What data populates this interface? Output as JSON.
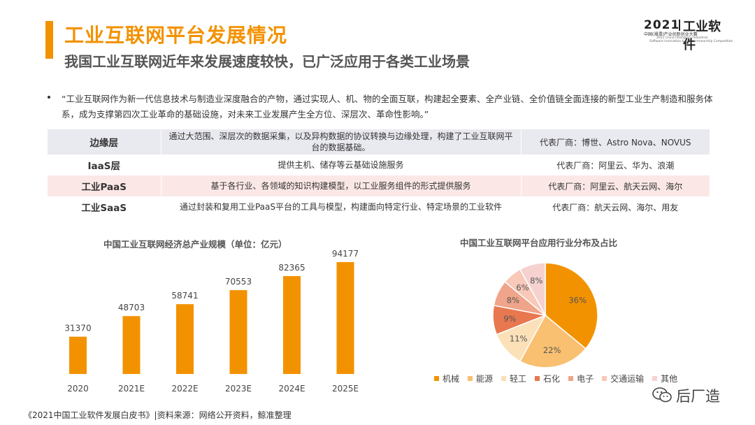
{
  "header": {
    "title": "工业互联网平台发展情况",
    "subtitle": "我国工业互联网近年来发展速度较快，已广泛应用于各类工业场景"
  },
  "logo": {
    "year": "2021",
    "brand": "工业软件",
    "sub": "中国(湘潭)产业创新创业大赛",
    "en_line1": "2021 China (Xiangtan) Industrial",
    "en_line2": "Software Innovation & Entrepreneurship Competition"
  },
  "quote": "“工业互联网作为新一代信息技术与制造业深度融合的产物，通过实现人、机、物的全面互联，构建起全要素、全产业链、全价值链全面连接的新型工业生产制造和服务体系，成为支撑第四次工业革命的基础设施，对未来工业发展产生全方位、深层次、革命性影响。”",
  "layers": [
    {
      "name": "边缘层",
      "desc": "通过大范围、深层次的数据采集，以及异构数据的协议转换与边缘处理，构建了工业互联网平台的数据基础。",
      "vendors": "代表厂商：博世、Astro Nova、NOVUS"
    },
    {
      "name": "IaaS层",
      "desc": "提供主机、储存等云基础设施服务",
      "vendors": "代表厂商：阿里云、华为、浪潮"
    },
    {
      "name": "工业PaaS",
      "desc": "基于各行业、各领域的知识构建模型，以工业服务组件的形式提供服务",
      "vendors": "代表厂商：阿里云、航天云网、海尔"
    },
    {
      "name": "工业SaaS",
      "desc": "通过封装和复用工业PaaS平台的工具与模型，构建面向特定行业、特定场景的工业软件",
      "vendors": "代表厂商：航天云网、海尔、用友"
    }
  ],
  "colors": {
    "accent": "#f39200",
    "bar": "#f39200",
    "row_edge": "#e9e9f0",
    "row_paas": "#fbe8e6"
  },
  "chart_data": [
    {
      "type": "bar",
      "title": "中国工业互联网经济总产业规模（单位：亿元）",
      "categories": [
        "2020",
        "2021E",
        "2022E",
        "2023E",
        "2024E",
        "2025E"
      ],
      "values": [
        31370,
        48703,
        58741,
        70553,
        82365,
        94177
      ],
      "ylim": [
        0,
        100000
      ],
      "grid": false
    },
    {
      "type": "pie",
      "title": "中国工业互联网平台应用行业分布及占比",
      "legend": "bottom",
      "slices": [
        {
          "name": "机械",
          "value": 36,
          "label": "36%",
          "color": "#f39200"
        },
        {
          "name": "能源",
          "value": 22,
          "label": "22%",
          "color": "#f8c070"
        },
        {
          "name": "轻工",
          "value": 11,
          "label": "11%",
          "color": "#fbe0b8"
        },
        {
          "name": "石化",
          "value": 9,
          "label": "9%",
          "color": "#e8784f"
        },
        {
          "name": "电子",
          "value": 8,
          "label": "8%",
          "color": "#f0a48a"
        },
        {
          "name": "交通运输",
          "value": 6,
          "label": "6%",
          "color": "#f8c8b8"
        },
        {
          "name": "其他",
          "value": 8,
          "label": "8%",
          "color": "#f5d2d0"
        }
      ]
    }
  ],
  "watermark": {
    "text": "后厂造"
  },
  "footer": "《2021中国工业软件发展白皮书》|资料来源：网络公开资料，鲸准整理"
}
